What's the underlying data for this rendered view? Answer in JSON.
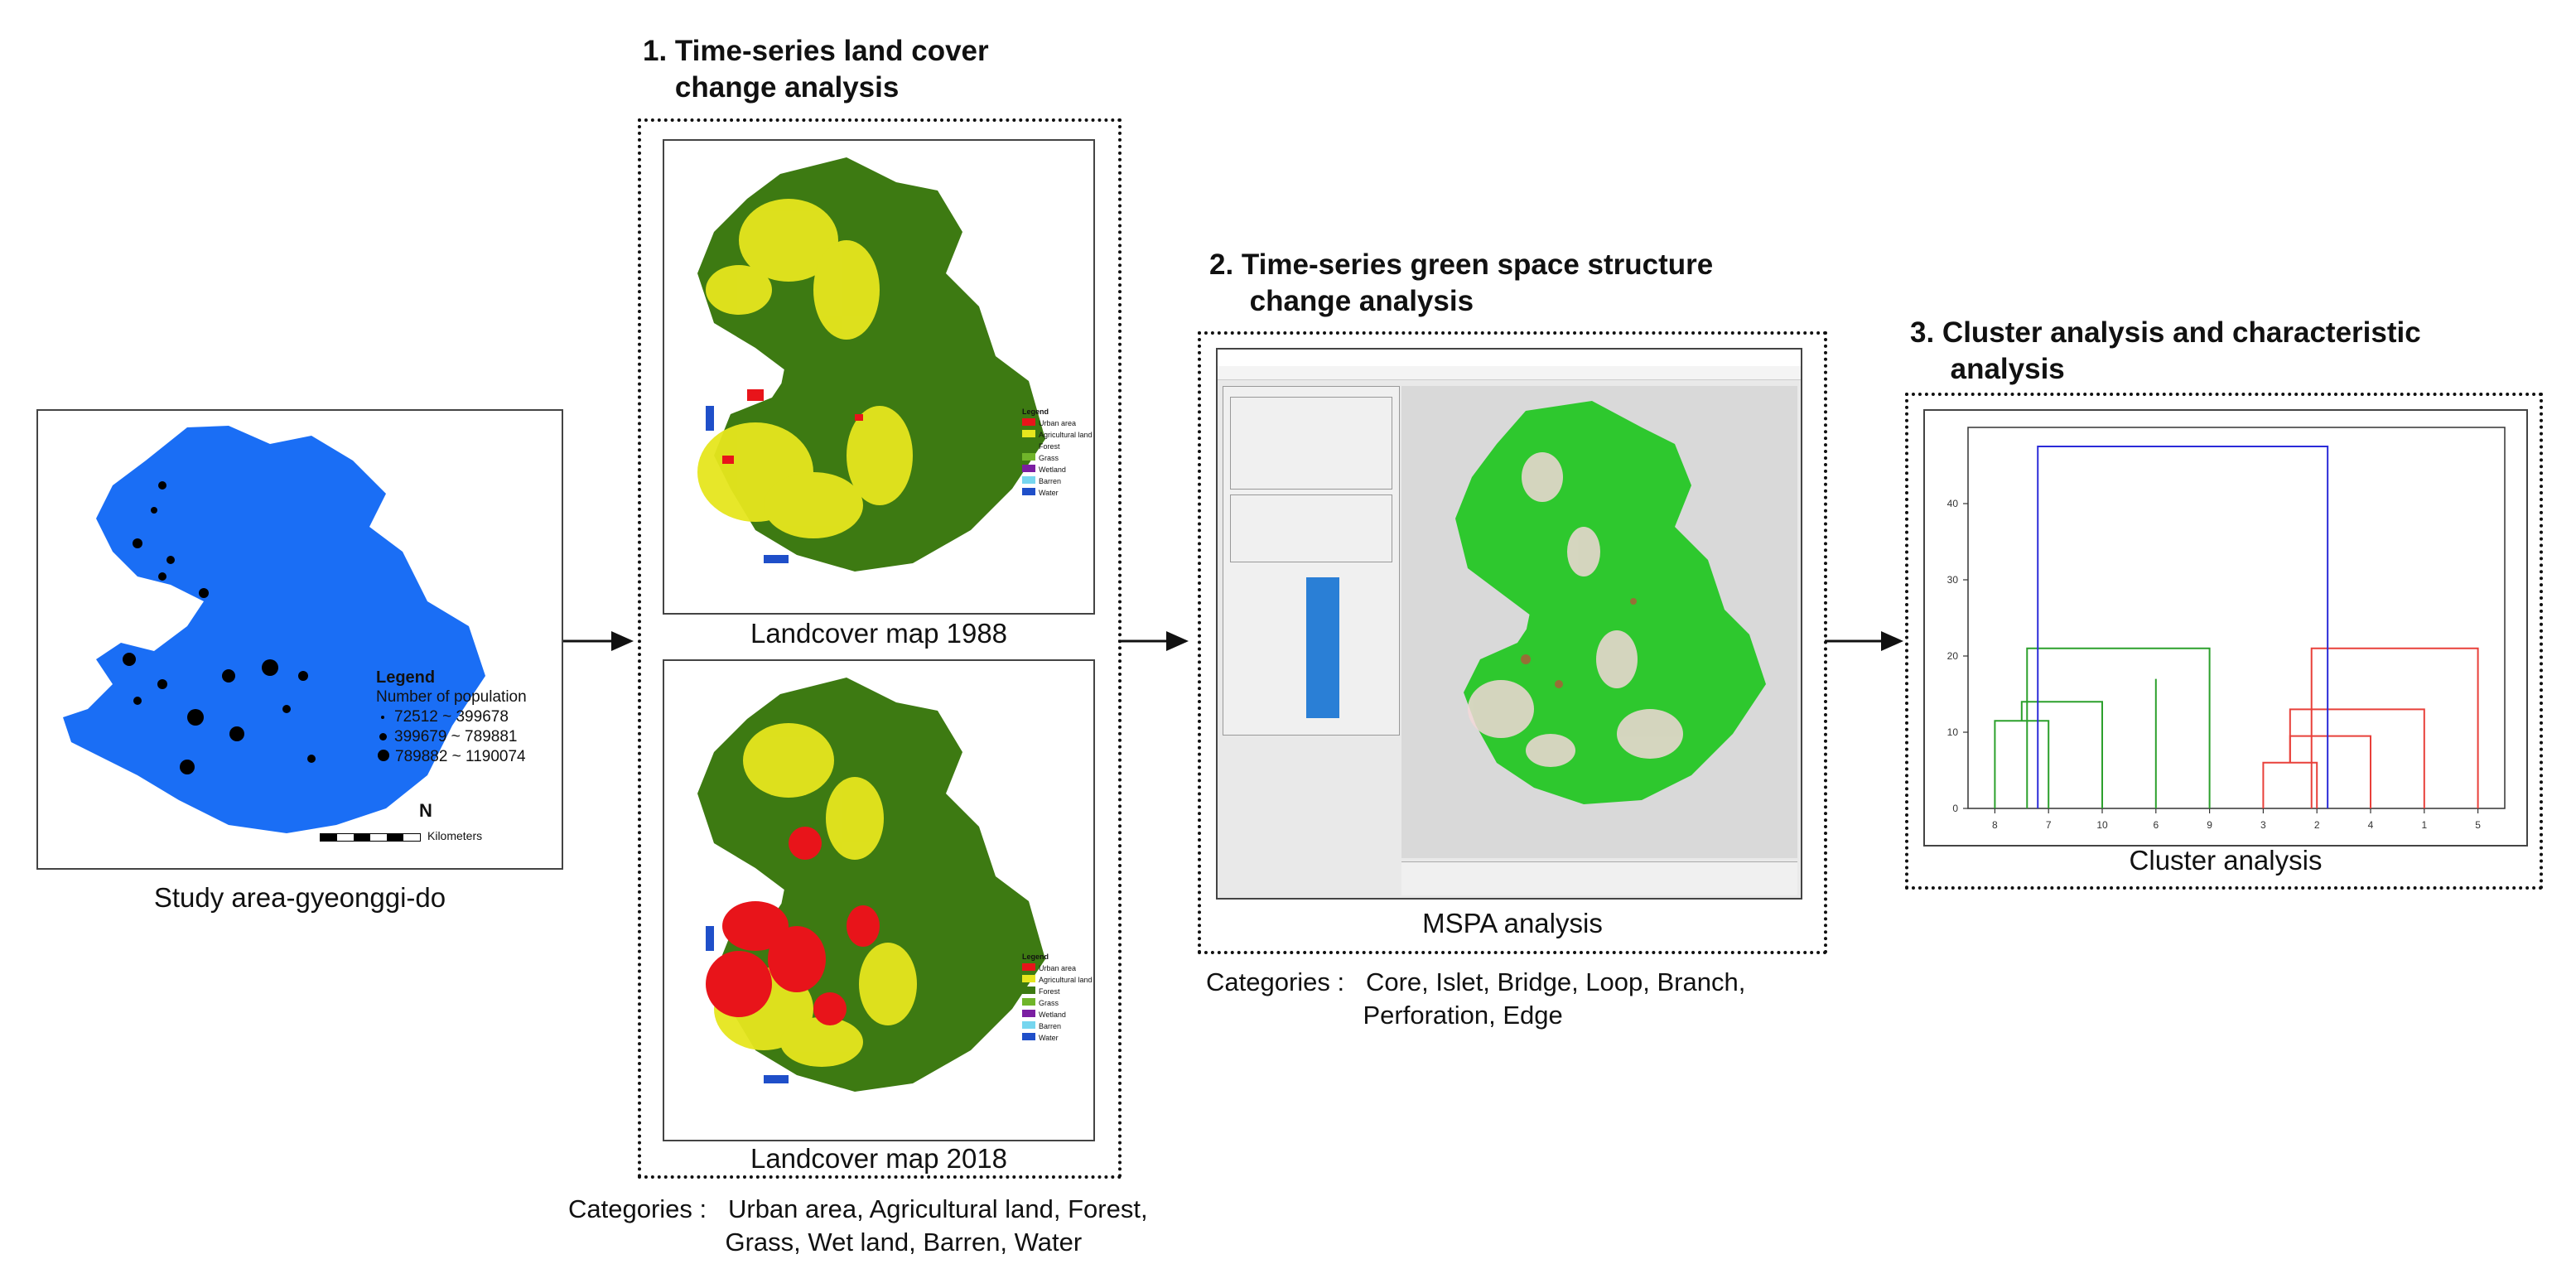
{
  "study_area": {
    "caption": "Study area-gyeonggi-do",
    "legend_title": "Legend",
    "legend_subtitle": "Number of population",
    "legend_items": [
      "72512 ~ 399678",
      "399679 ~ 789881",
      "789882 ~ 1190074"
    ],
    "scale_label": "Kilometers",
    "north": "N"
  },
  "step1": {
    "title": "1. Time-series land cover\n    change analysis",
    "map1_caption": "Landcover map 1988",
    "map2_caption": "Landcover map 2018",
    "legend_title": "Legend",
    "legend_items": [
      "Urban area",
      "Agricultural land",
      "Forest",
      "Grass",
      "Wetland",
      "Barren",
      "Water"
    ],
    "categories_note": "Categories :   Urban area, Agricultural land, Forest,\n                      Grass, Wet land, Barren, Water"
  },
  "step2": {
    "title": "2. Time-series green space structure\n     change analysis",
    "caption": "MSPA analysis",
    "categories_note": "Categories :   Core, Islet, Bridge, Loop, Branch,\n                      Perforation, Edge"
  },
  "step3": {
    "title": "3. Cluster analysis and characteristic\n     analysis",
    "caption": "Cluster analysis"
  },
  "colors": {
    "population_map": "#1a6ef5",
    "urban": "#e8141a",
    "agricultural": "#e6e61e",
    "forest": "#3d7a12",
    "grass": "#70b52a",
    "wetland": "#7b1fa2",
    "barren": "#76d6ef",
    "water": "#1f4fc9",
    "mspa_green": "#2ec82e",
    "cluster_left": "#2ca02c",
    "cluster_right": "#e8403a",
    "cluster_top": "#2b2bd8"
  },
  "chart_data": {
    "type": "dendrogram",
    "x_leaf_labels": [
      "8",
      "7",
      "10",
      "6",
      "9",
      "3",
      "2",
      "4",
      "1",
      "5"
    ],
    "y_tick_labels": [
      "0",
      "10",
      "20",
      "30",
      "40"
    ],
    "ylim": [
      0,
      50
    ],
    "merges": [
      {
        "group": "left",
        "left_x": 8,
        "right_x": 7,
        "height": 11.5
      },
      {
        "group": "left",
        "left_x": 7.5,
        "right_x": 10,
        "height": 14
      },
      {
        "group": "left",
        "left_x": 8.75,
        "right_x": 6,
        "height": 17
      },
      {
        "group": "left",
        "left_x": 7.4,
        "right_x": 9,
        "height": 21
      },
      {
        "group": "right",
        "left_x": 3,
        "right_x": 2,
        "height": 6
      },
      {
        "group": "right",
        "left_x": 2.5,
        "right_x": 4,
        "height": 9.5
      },
      {
        "group": "right",
        "left_x": 3.25,
        "right_x": 1,
        "height": 13
      },
      {
        "group": "right",
        "left_x": 2.1,
        "right_x": 5,
        "height": 21
      },
      {
        "group": "top",
        "left_x": 8.2,
        "right_x": 3.6,
        "height": 47.5
      }
    ]
  }
}
